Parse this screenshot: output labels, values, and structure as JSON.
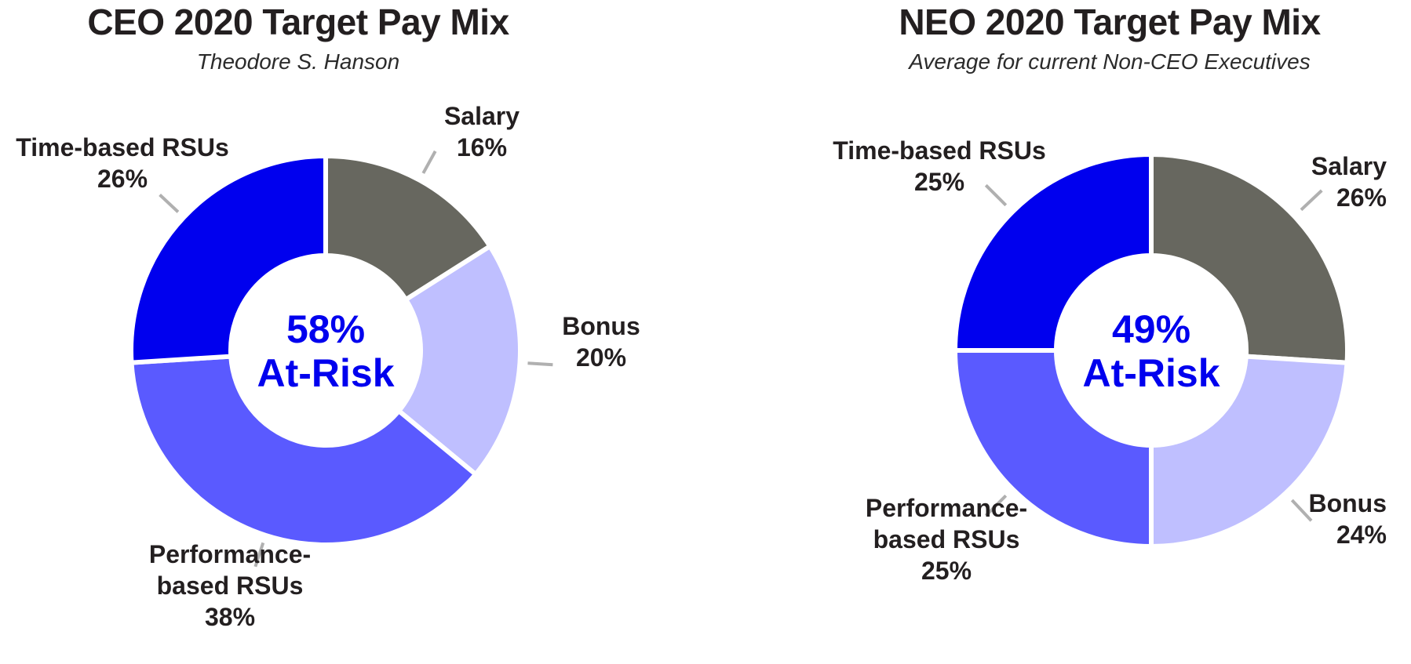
{
  "chart_data": [
    {
      "type": "pie",
      "title": "CEO 2020 Target Pay Mix",
      "subtitle": "Theodore S. Hanson",
      "center_value": "58%",
      "center_label": "At-Risk",
      "center_color": "#0000ee",
      "slices": [
        {
          "name": "Salary",
          "value": 16,
          "color": "#67675f",
          "label_lines": [
            "Salary",
            "16%"
          ]
        },
        {
          "name": "Bonus",
          "value": 20,
          "color": "#bfbfff",
          "label_lines": [
            "Bonus",
            "20%"
          ]
        },
        {
          "name": "Performance-based RSUs",
          "value": 38,
          "color": "#5a5aff",
          "label_lines": [
            "Performance-",
            "based RSUs",
            "38%"
          ]
        },
        {
          "name": "Time-based RSUs",
          "value": 26,
          "color": "#0000ee",
          "label_lines": [
            "Time-based RSUs",
            "26%"
          ]
        }
      ]
    },
    {
      "type": "pie",
      "title": "NEO 2020 Target Pay Mix",
      "subtitle": "Average for current Non-CEO Executives",
      "center_value": "49%",
      "center_label": "At-Risk",
      "center_color": "#0000ee",
      "slices": [
        {
          "name": "Salary",
          "value": 26,
          "color": "#67675f",
          "label_lines": [
            "Salary",
            "26%"
          ]
        },
        {
          "name": "Bonus",
          "value": 24,
          "color": "#bfbfff",
          "label_lines": [
            "Bonus",
            "24%"
          ]
        },
        {
          "name": "Performance-based RSUs",
          "value": 25,
          "color": "#5a5aff",
          "label_lines": [
            "Performance-",
            "based RSUs",
            "25%"
          ]
        },
        {
          "name": "Time-based RSUs",
          "value": 25,
          "color": "#0000ee",
          "label_lines": [
            "Time-based RSUs",
            "25%"
          ]
        }
      ]
    }
  ]
}
